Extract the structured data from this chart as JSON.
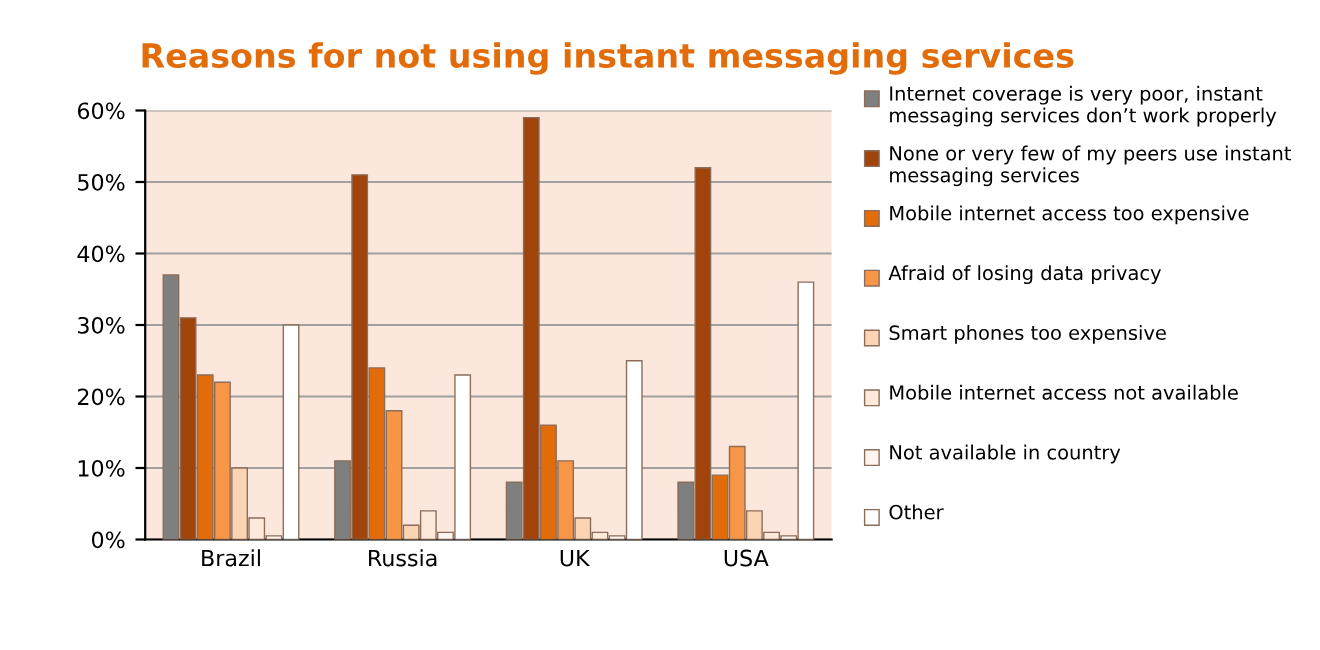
{
  "chart_data": {
    "type": "bar",
    "title": "Reasons for not using instant messaging services",
    "categories": [
      "Brazil",
      "Russia",
      "UK",
      "USA"
    ],
    "series": [
      {
        "name": "Internet coverage is very poor, instant messaging services don’t work properly",
        "color": "#7f7f7f",
        "values": [
          37,
          11,
          8,
          8
        ]
      },
      {
        "name": "None or very few of my peers use instant messaging services",
        "color": "#a0440c",
        "values": [
          31,
          51,
          59,
          52
        ]
      },
      {
        "name": "Mobile internet access too expensive",
        "color": "#e36c0a",
        "values": [
          23,
          24,
          16,
          9
        ]
      },
      {
        "name": "Afraid of losing data privacy",
        "color": "#f79646",
        "values": [
          22,
          18,
          11,
          13
        ]
      },
      {
        "name": "Smart phones too expensive",
        "color": "#fbd4b4",
        "values": [
          10,
          2,
          3,
          4
        ]
      },
      {
        "name": "Mobile internet access not available",
        "color": "#fde9d9",
        "values": [
          3,
          4,
          1,
          1
        ]
      },
      {
        "name": "Not available in country",
        "color": "#fff5ee",
        "values": [
          0.5,
          1,
          0.5,
          0.5
        ]
      },
      {
        "name": "Other",
        "color": "#ffffff",
        "values": [
          30,
          23,
          25,
          36
        ]
      }
    ],
    "ylim": [
      0,
      60
    ],
    "yticks": [
      {
        "value": 0,
        "label": "0%"
      },
      {
        "value": 10,
        "label": "10%"
      },
      {
        "value": 20,
        "label": "20%"
      },
      {
        "value": 30,
        "label": "30%"
      },
      {
        "value": 40,
        "label": "40%"
      },
      {
        "value": 50,
        "label": "50%"
      },
      {
        "value": 60,
        "label": "60%"
      }
    ],
    "grid": "y",
    "legend": "right"
  }
}
